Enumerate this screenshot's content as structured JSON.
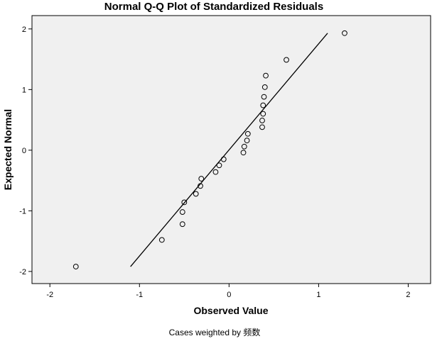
{
  "chart_data": {
    "type": "scatter",
    "title": "Normal Q-Q Plot of Standardized Residuals",
    "xlabel": "Observed Value",
    "ylabel": "Expected Normal",
    "footnote": "Cases weighted by 频数",
    "xlim": [
      -2.2,
      2.25
    ],
    "ylim": [
      -2.2,
      2.22
    ],
    "xticks": [
      -2,
      -1,
      0,
      1,
      2
    ],
    "yticks": [
      -2,
      -1,
      0,
      1,
      2
    ],
    "x_tick_labels": [
      "-2",
      "-1",
      "0",
      "1",
      "2"
    ],
    "y_tick_labels": [
      "-2",
      "-1",
      "0",
      "1",
      "2"
    ],
    "grid": false,
    "reference_line": {
      "x": [
        -1.1,
        1.1
      ],
      "y": [
        -1.92,
        1.93
      ]
    },
    "points": [
      {
        "x": -1.71,
        "y": -1.92
      },
      {
        "x": -0.75,
        "y": -1.48
      },
      {
        "x": -0.52,
        "y": -1.22
      },
      {
        "x": -0.52,
        "y": -1.02
      },
      {
        "x": -0.5,
        "y": -0.86
      },
      {
        "x": -0.37,
        "y": -0.72
      },
      {
        "x": -0.32,
        "y": -0.59
      },
      {
        "x": -0.31,
        "y": -0.47
      },
      {
        "x": -0.15,
        "y": -0.36
      },
      {
        "x": -0.11,
        "y": -0.25
      },
      {
        "x": -0.06,
        "y": -0.15
      },
      {
        "x": 0.16,
        "y": -0.04
      },
      {
        "x": 0.17,
        "y": 0.06
      },
      {
        "x": 0.2,
        "y": 0.16
      },
      {
        "x": 0.21,
        "y": 0.27
      },
      {
        "x": 0.37,
        "y": 0.38
      },
      {
        "x": 0.37,
        "y": 0.49
      },
      {
        "x": 0.38,
        "y": 0.6
      },
      {
        "x": 0.38,
        "y": 0.74
      },
      {
        "x": 0.39,
        "y": 0.88
      },
      {
        "x": 0.4,
        "y": 1.04
      },
      {
        "x": 0.41,
        "y": 1.23
      },
      {
        "x": 0.64,
        "y": 1.49
      },
      {
        "x": 1.29,
        "y": 1.93
      }
    ]
  }
}
